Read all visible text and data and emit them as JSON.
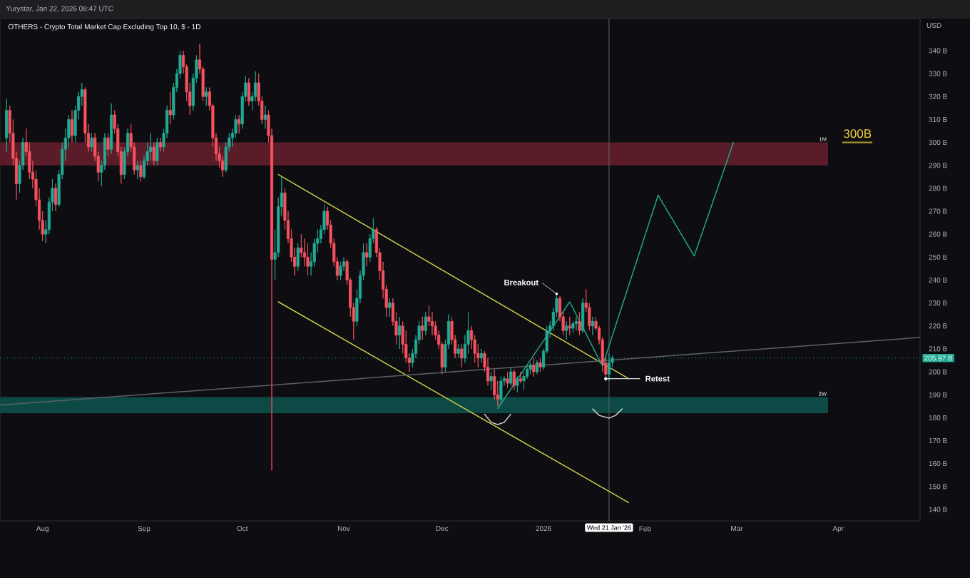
{
  "chart_data": {
    "type": "candlestick",
    "title": "OTHERS - Crypto Total Market Cap Excluding Top 10, $ - 1D",
    "ylabel": "USD",
    "annotations": [
      "Yurystar, Jan 22, 2026 08:47 UTC",
      {
        "text": "Breakout",
        "x": "2026-01-05",
        "y": 234
      },
      {
        "text": "Retest",
        "x": "2026-01-20",
        "y": 197
      },
      "300B"
    ],
    "xlim": [
      "2025-07-19",
      "2026-04-26"
    ],
    "xticks": [
      {
        "value": "2025-08-01",
        "label": "Aug"
      },
      {
        "value": "2025-09-01",
        "label": "Sep"
      },
      {
        "value": "2025-10-01",
        "label": "Oct"
      },
      {
        "value": "2025-11-01",
        "label": "Nov"
      },
      {
        "value": "2025-12-01",
        "label": "Dec"
      },
      {
        "value": "2026-01-01",
        "label": "2026"
      },
      {
        "value": "2026-02-01",
        "label": "Feb"
      },
      {
        "value": "2026-03-01",
        "label": "Mar"
      },
      {
        "value": "2026-04-01",
        "label": "Apr"
      }
    ],
    "ylim": [
      135,
      354
    ],
    "yticks": [
      {
        "value": 140,
        "label": "140 B"
      },
      {
        "value": 150,
        "label": "150 B"
      },
      {
        "value": 160,
        "label": "160 B"
      },
      {
        "value": 170,
        "label": "170 B"
      },
      {
        "value": 180,
        "label": "180 B"
      },
      {
        "value": 190,
        "label": "190 B"
      },
      {
        "value": 200,
        "label": "200 B"
      },
      {
        "value": 210,
        "label": "210 B"
      },
      {
        "value": 220,
        "label": "220 B"
      },
      {
        "value": 230,
        "label": "230 B"
      },
      {
        "value": 240,
        "label": "240 B"
      },
      {
        "value": 250,
        "label": "250 B"
      },
      {
        "value": 260,
        "label": "260 B"
      },
      {
        "value": 270,
        "label": "270 B"
      },
      {
        "value": 280,
        "label": "280 B"
      },
      {
        "value": 290,
        "label": "290 B"
      },
      {
        "value": 300,
        "label": "300 B"
      },
      {
        "value": 310,
        "label": "310 B"
      },
      {
        "value": 320,
        "label": "320 B"
      },
      {
        "value": 330,
        "label": "330 B"
      },
      {
        "value": 340,
        "label": "340 B"
      }
    ],
    "bands": [
      {
        "axis": "y",
        "from": 290,
        "to": 300,
        "label": "1M",
        "color": "#5a1c28"
      },
      {
        "axis": "y",
        "from": 182,
        "to": 189,
        "label": "2W",
        "color": "#0d4a45"
      }
    ],
    "ref_lines": [
      {
        "axis": "y",
        "value": 205.97,
        "label": "205.97 B",
        "color": "#22ab94",
        "line_style": "dotted"
      },
      {
        "axis": "x",
        "value": "2026-01-21",
        "label": "Wed 21 Jan '26",
        "color": "#6a6d78"
      }
    ],
    "series": [
      {
        "x": [
          "2025-07-21",
          "2025-07-22",
          "2025-07-23",
          "2025-07-24",
          "2025-07-25",
          "2025-07-26",
          "2025-07-27",
          "2025-07-28",
          "2025-07-29",
          "2025-07-30",
          "2025-07-31",
          "2025-08-01",
          "2025-08-02",
          "2025-08-03",
          "2025-08-04",
          "2025-08-05",
          "2025-08-06",
          "2025-08-07",
          "2025-08-08",
          "2025-08-09",
          "2025-08-10",
          "2025-08-11",
          "2025-08-12",
          "2025-08-13",
          "2025-08-14",
          "2025-08-15",
          "2025-08-16",
          "2025-08-17",
          "2025-08-18",
          "2025-08-19",
          "2025-08-20",
          "2025-08-21",
          "2025-08-22",
          "2025-08-23",
          "2025-08-24",
          "2025-08-25",
          "2025-08-26",
          "2025-08-27",
          "2025-08-28",
          "2025-08-29",
          "2025-08-30",
          "2025-08-31",
          "2025-09-01",
          "2025-09-02",
          "2025-09-03",
          "2025-09-04",
          "2025-09-05",
          "2025-09-06",
          "2025-09-07",
          "2025-09-08",
          "2025-09-09",
          "2025-09-10",
          "2025-09-11",
          "2025-09-12",
          "2025-09-13",
          "2025-09-14",
          "2025-09-15",
          "2025-09-16",
          "2025-09-17",
          "2025-09-18",
          "2025-09-19",
          "2025-09-20",
          "2025-09-21",
          "2025-09-22",
          "2025-09-23",
          "2025-09-24",
          "2025-09-25",
          "2025-09-26",
          "2025-09-27",
          "2025-09-28",
          "2025-09-29",
          "2025-09-30",
          "2025-10-01",
          "2025-10-02",
          "2025-10-03",
          "2025-10-04",
          "2025-10-05",
          "2025-10-06",
          "2025-10-07",
          "2025-10-08",
          "2025-10-09",
          "2025-10-10",
          "2025-10-11",
          "2025-10-12",
          "2025-10-13",
          "2025-10-14",
          "2025-10-15",
          "2025-10-16",
          "2025-10-17",
          "2025-10-18",
          "2025-10-19",
          "2025-10-20",
          "2025-10-21",
          "2025-10-22",
          "2025-10-23",
          "2025-10-24",
          "2025-10-25",
          "2025-10-26",
          "2025-10-27",
          "2025-10-28",
          "2025-10-29",
          "2025-10-30",
          "2025-10-31",
          "2025-11-01",
          "2025-11-02",
          "2025-11-03",
          "2025-11-04",
          "2025-11-05",
          "2025-11-06",
          "2025-11-07",
          "2025-11-08",
          "2025-11-09",
          "2025-11-10",
          "2025-11-11",
          "2025-11-12",
          "2025-11-13",
          "2025-11-14",
          "2025-11-15",
          "2025-11-16",
          "2025-11-17",
          "2025-11-18",
          "2025-11-19",
          "2025-11-20",
          "2025-11-21",
          "2025-11-22",
          "2025-11-23",
          "2025-11-24",
          "2025-11-25",
          "2025-11-26",
          "2025-11-27",
          "2025-11-28",
          "2025-11-29",
          "2025-11-30",
          "2025-12-01",
          "2025-12-02",
          "2025-12-03",
          "2025-12-04",
          "2025-12-05",
          "2025-12-06",
          "2025-12-07",
          "2025-12-08",
          "2025-12-09",
          "2025-12-10",
          "2025-12-11",
          "2025-12-12",
          "2025-12-13",
          "2025-12-14",
          "2025-12-15",
          "2025-12-16",
          "2025-12-17",
          "2025-12-18",
          "2025-12-19",
          "2025-12-20",
          "2025-12-21",
          "2025-12-22",
          "2025-12-23",
          "2025-12-24",
          "2025-12-25",
          "2025-12-26",
          "2025-12-27",
          "2025-12-28",
          "2025-12-29",
          "2025-12-30",
          "2025-12-31",
          "2026-01-01",
          "2026-01-02",
          "2026-01-03",
          "2026-01-04",
          "2026-01-05",
          "2026-01-06",
          "2026-01-07",
          "2026-01-08",
          "2026-01-09",
          "2026-01-10",
          "2026-01-11",
          "2026-01-12",
          "2026-01-13",
          "2026-01-14",
          "2026-01-15",
          "2026-01-16",
          "2026-01-17",
          "2026-01-18",
          "2026-01-19",
          "2026-01-20",
          "2026-01-21",
          "2026-01-22"
        ],
        "ohlc": [
          [
            302,
            319,
            296,
            314
          ],
          [
            314,
            316,
            300,
            304
          ],
          [
            304,
            310,
            290,
            293
          ],
          [
            293,
            296,
            275,
            282
          ],
          [
            282,
            292,
            278,
            290
          ],
          [
            290,
            302,
            288,
            300
          ],
          [
            300,
            306,
            294,
            296
          ],
          [
            296,
            300,
            284,
            287
          ],
          [
            287,
            292,
            280,
            284
          ],
          [
            284,
            288,
            272,
            275
          ],
          [
            275,
            280,
            262,
            266
          ],
          [
            266,
            270,
            257,
            260
          ],
          [
            260,
            266,
            256,
            262
          ],
          [
            262,
            276,
            260,
            274
          ],
          [
            274,
            284,
            270,
            280
          ],
          [
            280,
            282,
            270,
            273
          ],
          [
            273,
            288,
            272,
            286
          ],
          [
            286,
            300,
            284,
            297
          ],
          [
            297,
            306,
            292,
            302
          ],
          [
            302,
            312,
            298,
            310
          ],
          [
            310,
            314,
            300,
            303
          ],
          [
            303,
            316,
            300,
            314
          ],
          [
            314,
            322,
            310,
            320
          ],
          [
            320,
            326,
            316,
            323
          ],
          [
            323,
            324,
            300,
            304
          ],
          [
            304,
            308,
            296,
            298
          ],
          [
            298,
            304,
            296,
            302
          ],
          [
            302,
            304,
            292,
            294
          ],
          [
            294,
            296,
            283,
            287
          ],
          [
            287,
            292,
            281,
            290
          ],
          [
            290,
            304,
            288,
            302
          ],
          [
            302,
            304,
            294,
            297
          ],
          [
            297,
            317,
            295,
            312
          ],
          [
            312,
            314,
            304,
            306
          ],
          [
            306,
            308,
            294,
            296
          ],
          [
            296,
            298,
            282,
            286
          ],
          [
            286,
            298,
            284,
            296
          ],
          [
            296,
            306,
            294,
            304
          ],
          [
            304,
            308,
            296,
            298
          ],
          [
            298,
            300,
            286,
            288
          ],
          [
            288,
            292,
            284,
            290
          ],
          [
            290,
            292,
            283,
            285
          ],
          [
            285,
            294,
            284,
            292
          ],
          [
            292,
            300,
            290,
            296
          ],
          [
            296,
            304,
            292,
            298
          ],
          [
            298,
            300,
            290,
            292
          ],
          [
            292,
            302,
            290,
            300
          ],
          [
            300,
            302,
            296,
            298
          ],
          [
            298,
            306,
            296,
            304
          ],
          [
            304,
            316,
            302,
            314
          ],
          [
            314,
            322,
            308,
            312
          ],
          [
            312,
            326,
            310,
            324
          ],
          [
            324,
            332,
            322,
            330
          ],
          [
            330,
            340,
            328,
            338
          ],
          [
            338,
            340,
            330,
            333
          ],
          [
            333,
            334,
            318,
            322
          ],
          [
            322,
            326,
            312,
            316
          ],
          [
            316,
            330,
            314,
            328
          ],
          [
            328,
            338,
            326,
            336
          ],
          [
            336,
            343,
            330,
            332
          ],
          [
            332,
            333,
            318,
            320
          ],
          [
            320,
            324,
            316,
            322
          ],
          [
            322,
            324,
            314,
            316
          ],
          [
            316,
            317,
            298,
            302
          ],
          [
            302,
            304,
            292,
            295
          ],
          [
            295,
            298,
            289,
            292
          ],
          [
            292,
            294,
            285,
            288
          ],
          [
            288,
            300,
            287,
            298
          ],
          [
            298,
            304,
            296,
            302
          ],
          [
            302,
            306,
            298,
            304
          ],
          [
            304,
            312,
            302,
            310
          ],
          [
            310,
            312,
            304,
            308
          ],
          [
            308,
            322,
            306,
            320
          ],
          [
            320,
            329,
            318,
            326
          ],
          [
            326,
            328,
            316,
            318
          ],
          [
            318,
            322,
            314,
            320
          ],
          [
            320,
            331,
            318,
            326
          ],
          [
            326,
            330,
            316,
            318
          ],
          [
            318,
            320,
            308,
            310
          ],
          [
            310,
            316,
            306,
            312
          ],
          [
            312,
            314,
            300,
            303
          ],
          [
            303,
            306,
            157,
            249
          ],
          [
            249,
            262,
            240,
            252
          ],
          [
            252,
            276,
            250,
            272
          ],
          [
            272,
            285,
            268,
            278
          ],
          [
            278,
            280,
            262,
            266
          ],
          [
            266,
            270,
            256,
            258
          ],
          [
            258,
            262,
            248,
            250
          ],
          [
            250,
            254,
            242,
            246
          ],
          [
            246,
            256,
            244,
            254
          ],
          [
            254,
            260,
            250,
            252
          ],
          [
            252,
            258,
            246,
            250
          ],
          [
            250,
            256,
            242,
            246
          ],
          [
            246,
            252,
            242,
            248
          ],
          [
            248,
            258,
            246,
            256
          ],
          [
            256,
            262,
            252,
            258
          ],
          [
            258,
            264,
            256,
            262
          ],
          [
            262,
            273,
            260,
            270
          ],
          [
            270,
            272,
            262,
            264
          ],
          [
            264,
            266,
            254,
            256
          ],
          [
            256,
            258,
            246,
            248
          ],
          [
            248,
            250,
            240,
            242
          ],
          [
            242,
            248,
            240,
            246
          ],
          [
            246,
            250,
            244,
            248
          ],
          [
            248,
            249,
            238,
            240
          ],
          [
            240,
            241,
            224,
            228
          ],
          [
            228,
            230,
            214,
            222
          ],
          [
            222,
            236,
            220,
            232
          ],
          [
            232,
            244,
            230,
            242
          ],
          [
            242,
            256,
            240,
            252
          ],
          [
            252,
            256,
            246,
            250
          ],
          [
            250,
            260,
            248,
            258
          ],
          [
            258,
            267,
            256,
            262
          ],
          [
            262,
            263,
            250,
            252
          ],
          [
            252,
            254,
            240,
            244
          ],
          [
            244,
            248,
            232,
            236
          ],
          [
            236,
            238,
            224,
            228
          ],
          [
            228,
            232,
            224,
            230
          ],
          [
            230,
            232,
            220,
            222
          ],
          [
            222,
            226,
            212,
            216
          ],
          [
            216,
            224,
            210,
            220
          ],
          [
            220,
            222,
            208,
            212
          ],
          [
            212,
            218,
            204,
            206
          ],
          [
            206,
            208,
            200,
            204
          ],
          [
            204,
            210,
            202,
            208
          ],
          [
            208,
            216,
            206,
            214
          ],
          [
            214,
            222,
            212,
            220
          ],
          [
            220,
            224,
            214,
            218
          ],
          [
            218,
            226,
            216,
            224
          ],
          [
            224,
            229,
            220,
            222
          ],
          [
            222,
            226,
            216,
            220
          ],
          [
            220,
            222,
            214,
            216
          ],
          [
            216,
            218,
            210,
            212
          ],
          [
            212,
            213,
            199,
            202
          ],
          [
            202,
            214,
            200,
            212
          ],
          [
            212,
            225,
            210,
            222
          ],
          [
            222,
            224,
            212,
            214
          ],
          [
            214,
            216,
            206,
            208
          ],
          [
            208,
            212,
            206,
            210
          ],
          [
            210,
            212,
            202,
            206
          ],
          [
            206,
            216,
            204,
            212
          ],
          [
            212,
            226,
            208,
            218
          ],
          [
            218,
            220,
            210,
            214
          ],
          [
            214,
            216,
            204,
            208
          ],
          [
            208,
            212,
            202,
            206
          ],
          [
            206,
            210,
            204,
            208
          ],
          [
            208,
            209,
            200,
            202
          ],
          [
            202,
            206,
            194,
            196
          ],
          [
            196,
            200,
            192,
            198
          ],
          [
            198,
            201,
            188,
            190
          ],
          [
            190,
            196,
            185,
            188
          ],
          [
            188,
            198,
            186,
            196
          ],
          [
            196,
            198,
            194,
            197
          ],
          [
            197,
            200,
            193,
            195
          ],
          [
            195,
            202,
            194,
            200
          ],
          [
            200,
            201,
            192,
            194
          ],
          [
            194,
            198,
            191,
            197
          ],
          [
            197,
            200,
            195,
            196
          ],
          [
            196,
            200,
            192,
            198
          ],
          [
            198,
            202,
            197,
            201
          ],
          [
            201,
            204,
            199,
            203
          ],
          [
            203,
            206,
            198,
            200
          ],
          [
            200,
            205,
            199,
            204
          ],
          [
            204,
            206,
            200,
            202
          ],
          [
            202,
            210,
            201,
            209
          ],
          [
            209,
            220,
            208,
            218
          ],
          [
            218,
            222,
            215,
            220
          ],
          [
            220,
            228,
            218,
            226
          ],
          [
            226,
            234,
            224,
            232
          ],
          [
            232,
            233,
            222,
            224
          ],
          [
            224,
            226,
            216,
            218
          ],
          [
            218,
            222,
            214,
            220
          ],
          [
            220,
            224,
            216,
            219
          ],
          [
            219,
            222,
            217,
            221
          ],
          [
            221,
            224,
            218,
            222
          ],
          [
            222,
            226,
            216,
            218
          ],
          [
            218,
            232,
            217,
            230
          ],
          [
            230,
            236,
            226,
            228
          ],
          [
            228,
            230,
            218,
            220
          ],
          [
            220,
            224,
            216,
            222
          ],
          [
            222,
            224,
            218,
            219
          ],
          [
            219,
            220,
            212,
            214
          ],
          [
            214,
            215,
            200,
            204
          ],
          [
            204,
            206,
            196,
            199
          ],
          [
            199,
            208,
            196,
            204
          ],
          [
            204,
            207,
            202,
            205.97
          ]
        ],
        "colors": [
          "#22ab94",
          "#f7525f",
          "#f7525f",
          "#f7525f",
          "#22ab94",
          "#22ab94",
          "#f7525f",
          "#f7525f",
          "#f7525f",
          "#f7525f",
          "#f7525f",
          "#f7525f",
          "#22ab94",
          "#22ab94",
          "#22ab94",
          "#f7525f",
          "#22ab94",
          "#22ab94",
          "#22ab94",
          "#22ab94",
          "#f7525f",
          "#22ab94",
          "#22ab94",
          "#22ab94",
          "#f7525f",
          "#f7525f",
          "#22ab94",
          "#f7525f",
          "#f7525f",
          "#22ab94",
          "#22ab94",
          "#f7525f",
          "#22ab94",
          "#f7525f",
          "#f7525f",
          "#f7525f",
          "#22ab94",
          "#22ab94",
          "#f7525f",
          "#f7525f",
          "#22ab94",
          "#f7525f",
          "#22ab94",
          "#22ab94",
          "#22ab94",
          "#f7525f",
          "#22ab94",
          "#f7525f",
          "#22ab94",
          "#22ab94",
          "#f7525f",
          "#22ab94",
          "#22ab94",
          "#22ab94",
          "#f7525f",
          "#f7525f",
          "#f7525f",
          "#22ab94",
          "#22ab94",
          "#f7525f",
          "#f7525f",
          "#22ab94",
          "#f7525f",
          "#f7525f",
          "#f7525f",
          "#f7525f",
          "#f7525f",
          "#22ab94",
          "#22ab94",
          "#22ab94",
          "#22ab94",
          "#f7525f",
          "#22ab94",
          "#22ab94",
          "#f7525f",
          "#22ab94",
          "#22ab94",
          "#f7525f",
          "#f7525f",
          "#22ab94",
          "#f7525f",
          "#f7525f",
          "#22ab94",
          "#22ab94",
          "#22ab94",
          "#f7525f",
          "#f7525f",
          "#f7525f",
          "#f7525f",
          "#22ab94",
          "#f7525f",
          "#f7525f",
          "#f7525f",
          "#22ab94",
          "#22ab94",
          "#22ab94",
          "#22ab94",
          "#22ab94",
          "#f7525f",
          "#f7525f",
          "#f7525f",
          "#f7525f",
          "#22ab94",
          "#22ab94",
          "#f7525f",
          "#f7525f",
          "#f7525f",
          "#22ab94",
          "#22ab94",
          "#22ab94",
          "#f7525f",
          "#22ab94",
          "#22ab94",
          "#f7525f",
          "#f7525f",
          "#f7525f",
          "#f7525f",
          "#22ab94",
          "#f7525f",
          "#f7525f",
          "#22ab94",
          "#f7525f",
          "#f7525f",
          "#f7525f",
          "#22ab94",
          "#22ab94",
          "#22ab94",
          "#f7525f",
          "#22ab94",
          "#f7525f",
          "#f7525f",
          "#f7525f",
          "#f7525f",
          "#f7525f",
          "#22ab94",
          "#22ab94",
          "#f7525f",
          "#f7525f",
          "#22ab94",
          "#f7525f",
          "#22ab94",
          "#22ab94",
          "#f7525f",
          "#f7525f",
          "#f7525f",
          "#22ab94",
          "#f7525f",
          "#f7525f",
          "#22ab94",
          "#f7525f",
          "#f7525f",
          "#22ab94",
          "#22ab94",
          "#f7525f",
          "#22ab94",
          "#f7525f",
          "#22ab94",
          "#f7525f",
          "#22ab94",
          "#22ab94",
          "#22ab94",
          "#f7525f",
          "#22ab94",
          "#f7525f",
          "#22ab94",
          "#22ab94",
          "#22ab94",
          "#22ab94",
          "#22ab94",
          "#f7525f",
          "#f7525f",
          "#22ab94",
          "#f7525f",
          "#22ab94",
          "#22ab94",
          "#f7525f",
          "#22ab94",
          "#f7525f",
          "#f7525f",
          "#22ab94",
          "#f7525f",
          "#f7525f",
          "#f7525f",
          "#f7525f",
          "#22ab94",
          "#22ab94"
        ]
      },
      {
        "type": "line",
        "x": [
          "2025-10-12",
          "2026-01-27"
        ],
        "values": [
          286,
          197
        ],
        "color": "#c9c94a"
      },
      {
        "type": "line",
        "x": [
          "2025-10-12",
          "2026-01-27"
        ],
        "values": [
          230.5,
          143
        ],
        "color": "#c9c94a"
      },
      {
        "type": "line",
        "x": [
          "2025-07-19",
          "2026-04-26"
        ],
        "values": [
          185.5,
          215
        ],
        "color": "#5e6068"
      },
      {
        "type": "line",
        "x": [
          "2025-12-18",
          "2026-01-09",
          "2026-01-19",
          "2026-02-05",
          "2026-02-16",
          "2026-02-28"
        ],
        "values": [
          184,
          230.5,
          202.5,
          277,
          250.5,
          300
        ],
        "color": "#1fa58a"
      },
      {
        "type": "line",
        "x": [
          "2025-12-14",
          "2025-12-16",
          "2025-12-18",
          "2025-12-20",
          "2025-12-22"
        ],
        "values": [
          181.5,
          178,
          177,
          178,
          181.5
        ],
        "color": "#c8c8c8"
      },
      {
        "type": "line",
        "x": [
          "2026-01-16",
          "2026-01-18",
          "2026-01-21",
          "2026-01-23",
          "2026-01-25"
        ],
        "values": [
          183.8,
          181,
          179.8,
          181,
          183.8
        ],
        "color": "#c8c8c8"
      }
    ]
  }
}
